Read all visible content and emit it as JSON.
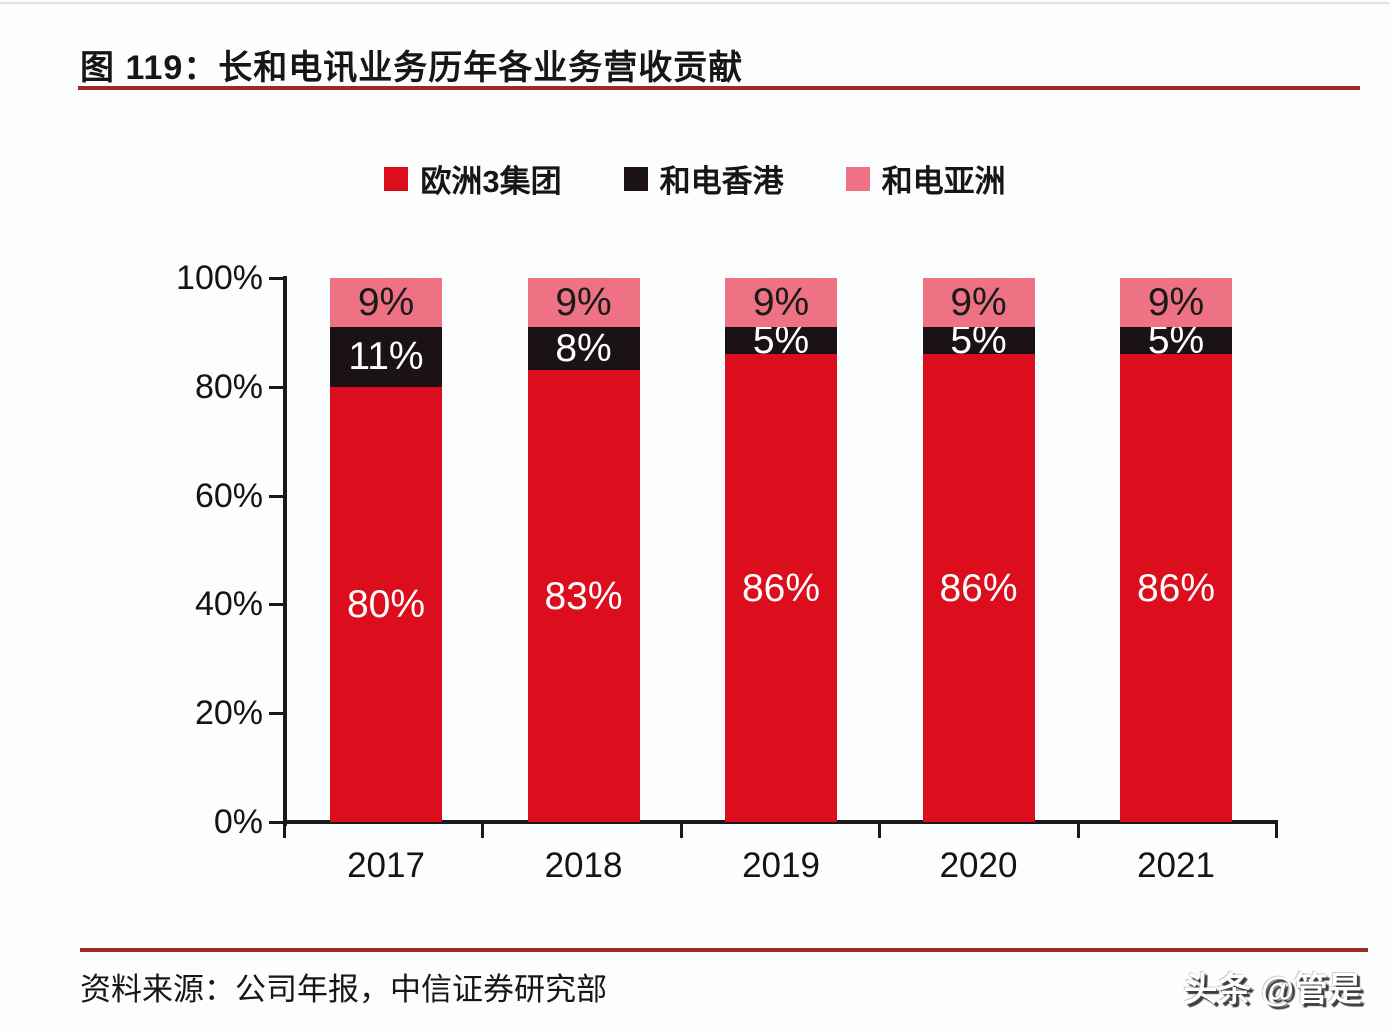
{
  "page": {
    "title": "图 119：长和电讯业务历年各业务营收贡献",
    "source_note": "资料来源：公司年报，中信证券研究部",
    "watermark": "头条 @管是"
  },
  "colors": {
    "accent_rule": "#9c2b24",
    "axis": "#1a1a1a",
    "series_europe3": "#dc0e1e",
    "series_hk": "#1a1215",
    "series_asia": "#ee7284"
  },
  "chart_data": {
    "type": "bar",
    "stacked": true,
    "title": "长和电讯业务历年各业务营收贡献",
    "categories": [
      "2017",
      "2018",
      "2019",
      "2020",
      "2021"
    ],
    "series": [
      {
        "name": "欧洲3集团",
        "color": "#dc0e1e",
        "label_color": "#ffffff",
        "values": [
          80,
          83,
          86,
          86,
          86
        ]
      },
      {
        "name": "和电香港",
        "color": "#1a1215",
        "label_color": "#ffffff",
        "values": [
          11,
          8,
          5,
          5,
          5
        ]
      },
      {
        "name": "和电亚洲",
        "color": "#ee7284",
        "label_color": "#1a1a1a",
        "values": [
          9,
          9,
          9,
          9,
          9
        ]
      }
    ],
    "value_suffix": "%",
    "y_ticks": [
      "0%",
      "20%",
      "40%",
      "60%",
      "80%",
      "100%"
    ],
    "ylim": [
      0,
      100
    ],
    "grid": false,
    "legend_position": "top"
  }
}
